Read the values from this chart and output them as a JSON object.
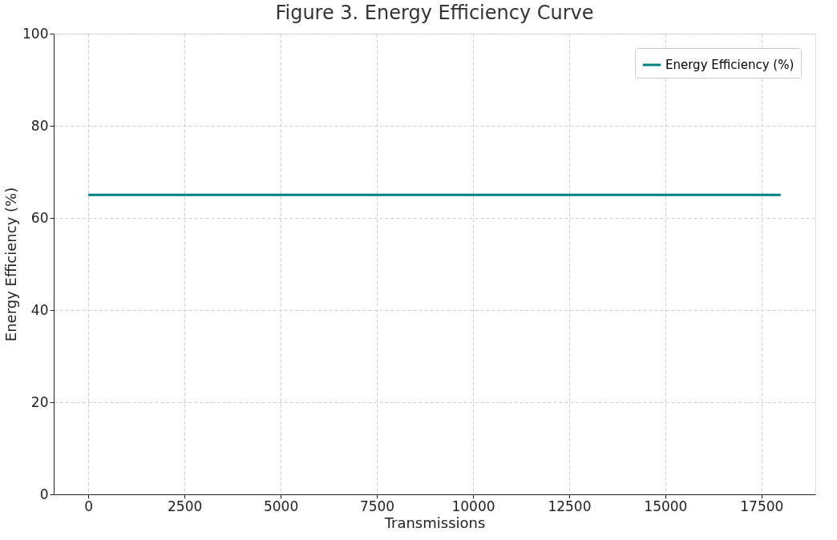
{
  "chart_data": {
    "type": "line",
    "title": "Figure 3. Energy Efficiency Curve",
    "xlabel": "Transmissions",
    "ylabel": "Energy Efficiency (%)",
    "x": [
      0,
      18000
    ],
    "series": [
      {
        "name": "Energy Efficiency (%)",
        "color": "#008080",
        "values": [
          65,
          65
        ]
      }
    ],
    "xlim": [
      -900,
      18900
    ],
    "xticks": [
      0,
      2500,
      5000,
      7500,
      10000,
      12500,
      15000,
      17500
    ],
    "ylim": [
      0,
      100
    ],
    "yticks": [
      0,
      20,
      40,
      60,
      80,
      100
    ],
    "grid": true,
    "legend": "top right",
    "line_style": "solid",
    "marker": "none"
  }
}
